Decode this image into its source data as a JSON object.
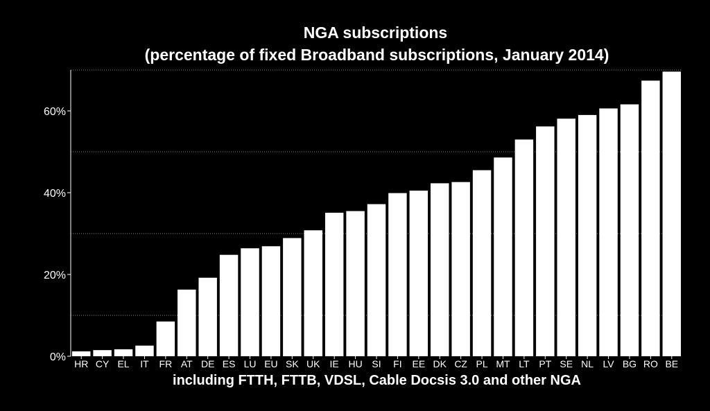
{
  "chart_data": {
    "type": "bar",
    "title": "NGA subscriptions",
    "subtitle": "(percentage of fixed Broadband subscriptions, January 2014)",
    "xlabel": "including FTTH, FTTB, VDSL, Cable Docsis 3.0 and other NGA",
    "ylabel": "",
    "ylim": [
      0,
      70
    ],
    "yticks": [
      0,
      20,
      40,
      60
    ],
    "ytick_labels": [
      "0%",
      "20%",
      "40%",
      "60%"
    ],
    "gridlines": [
      10,
      30,
      50,
      70
    ],
    "categories": [
      "HR",
      "CY",
      "EL",
      "IT",
      "FR",
      "AT",
      "DE",
      "ES",
      "LU",
      "EU",
      "SK",
      "UK",
      "IE",
      "HU",
      "SI",
      "FI",
      "EE",
      "DK",
      "CZ",
      "PL",
      "MT",
      "LT",
      "PT",
      "SE",
      "NL",
      "LV",
      "BG",
      "RO",
      "BE"
    ],
    "values": [
      1.2,
      1.5,
      1.7,
      2.6,
      8.5,
      16.3,
      19.2,
      24.8,
      26.4,
      26.9,
      28.9,
      30.8,
      35.1,
      35.5,
      37.2,
      39.9,
      40.5,
      42.3,
      42.6,
      45.5,
      48.6,
      53.0,
      56.2,
      58.1,
      59.0,
      60.6,
      61.6,
      67.4,
      69.6
    ],
    "bar_color": "#ffffff",
    "background_color": "#000000",
    "grid_color": "#888888"
  }
}
